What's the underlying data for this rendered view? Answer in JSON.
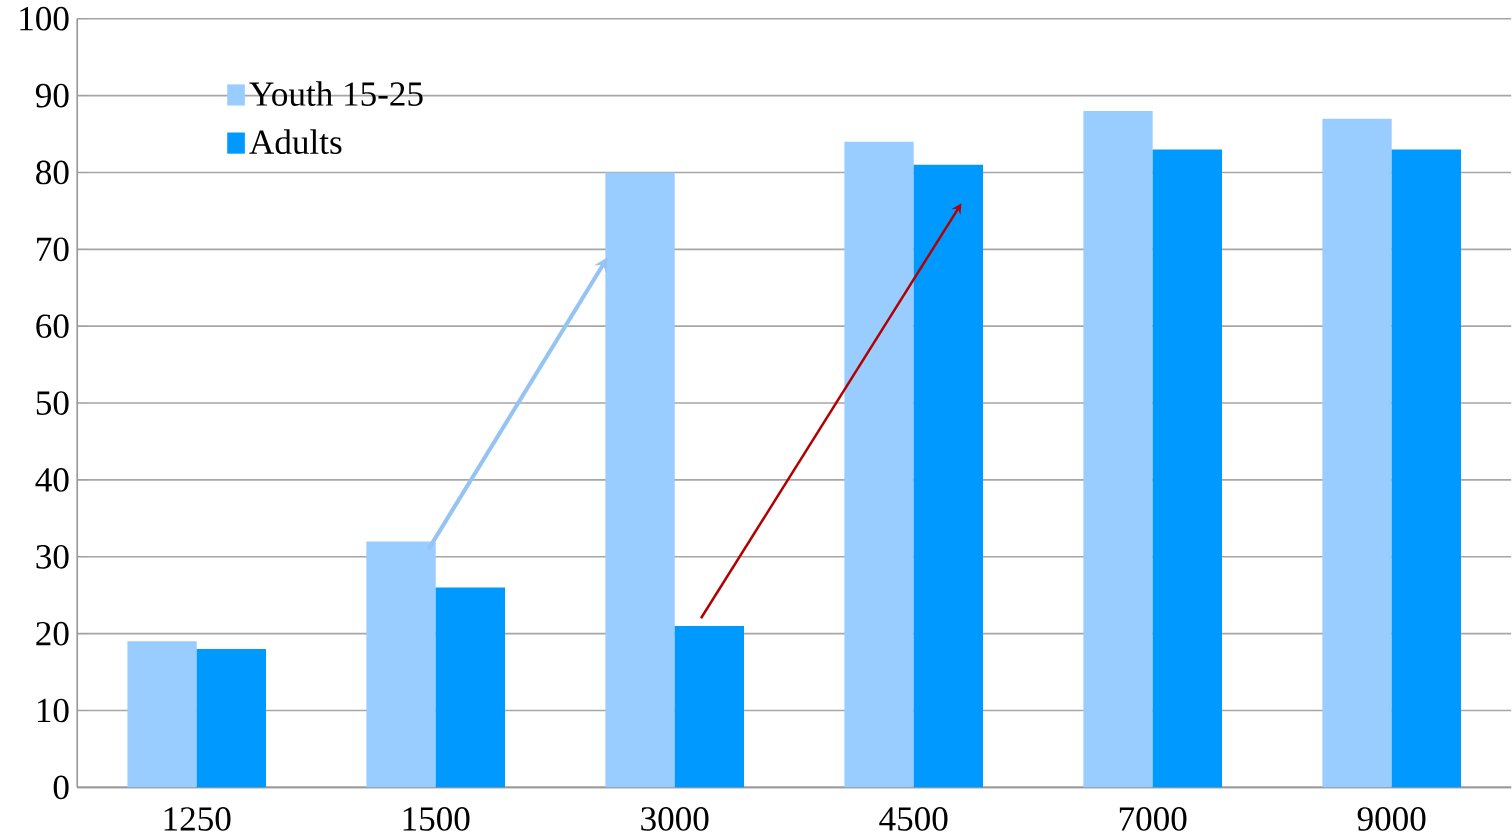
{
  "chart_data": {
    "type": "bar",
    "categories": [
      "1250",
      "1500",
      "3000",
      "4500",
      "7000",
      "9000"
    ],
    "series": [
      {
        "name": "Youth 15-25",
        "color": "#99ccff",
        "values": [
          19,
          32,
          80,
          84,
          88,
          87
        ]
      },
      {
        "name": "Adults",
        "color": "#0099ff",
        "values": [
          18,
          26,
          21,
          81,
          83,
          83
        ]
      }
    ],
    "ylim": [
      0,
      100
    ],
    "yticks": [
      0,
      10,
      20,
      30,
      40,
      50,
      60,
      70,
      80,
      90,
      100
    ],
    "grid": "y",
    "legend": "top left"
  }
}
